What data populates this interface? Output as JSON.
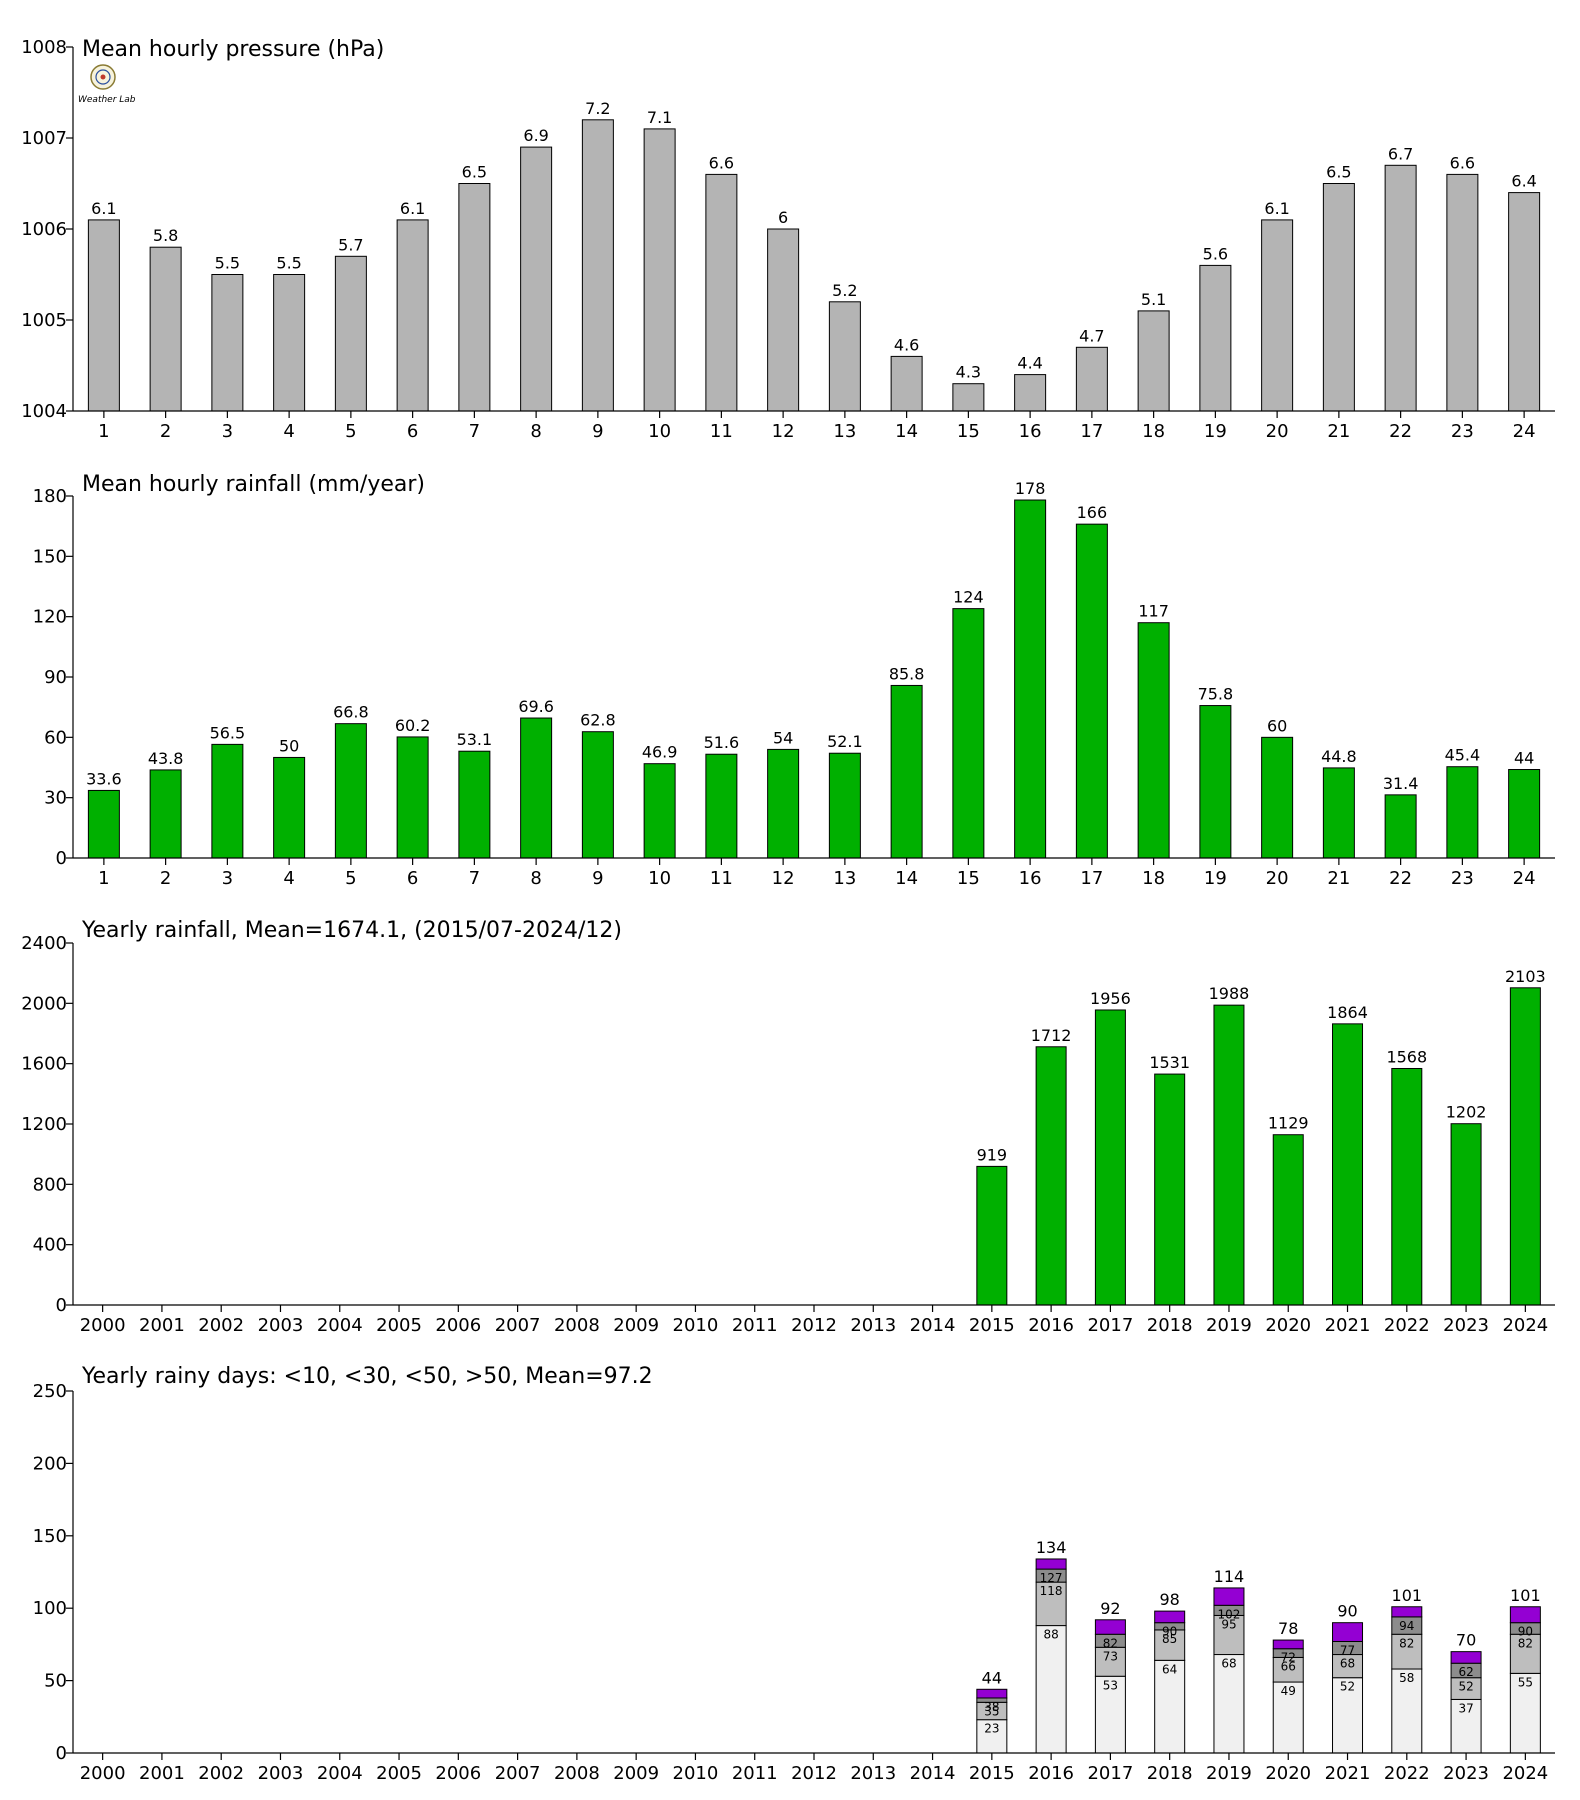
{
  "colors": {
    "pressure_bar": "#b4b4b4",
    "rain_bar": "#00b000",
    "seg_lt10": "#f0f0f0",
    "seg_lt30": "#bebebe",
    "seg_lt50": "#8c8c8c",
    "seg_gt50": "#9400d3"
  },
  "logo": {
    "icon": "weather-lab-logo",
    "text": "Weather Lab"
  },
  "chart_data": [
    {
      "type": "bar",
      "title": "Mean hourly pressure (hPa)",
      "categories": [
        "1",
        "2",
        "3",
        "4",
        "5",
        "6",
        "7",
        "8",
        "9",
        "10",
        "11",
        "12",
        "13",
        "14",
        "15",
        "16",
        "17",
        "18",
        "19",
        "20",
        "21",
        "22",
        "23",
        "24"
      ],
      "values": [
        1006.1,
        1005.8,
        1005.5,
        1005.5,
        1005.7,
        1006.1,
        1006.5,
        1006.9,
        1007.2,
        1007.1,
        1006.6,
        1006.0,
        1005.2,
        1004.6,
        1004.3,
        1004.4,
        1004.7,
        1005.1,
        1005.6,
        1006.1,
        1006.5,
        1006.7,
        1006.6,
        1006.4
      ],
      "value_labels": [
        "6.1",
        "5.8",
        "5.5",
        "5.5",
        "5.7",
        "6.1",
        "6.5",
        "6.9",
        "7.2",
        "7.1",
        "6.6",
        "6",
        "5.2",
        "4.6",
        "4.3",
        "4.4",
        "4.7",
        "5.1",
        "5.6",
        "6.1",
        "6.5",
        "6.7",
        "6.6",
        "6.4"
      ],
      "ylim": [
        1004,
        1008
      ],
      "yticks": [
        1004,
        1005,
        1006,
        1007,
        1008
      ],
      "ytick_labels": [
        "1004",
        "1005",
        "1006",
        "1007",
        "1008"
      ],
      "grid": false
    },
    {
      "type": "bar",
      "title": "Mean hourly rainfall (mm/year)",
      "categories": [
        "1",
        "2",
        "3",
        "4",
        "5",
        "6",
        "7",
        "8",
        "9",
        "10",
        "11",
        "12",
        "13",
        "14",
        "15",
        "16",
        "17",
        "18",
        "19",
        "20",
        "21",
        "22",
        "23",
        "24"
      ],
      "values": [
        33.6,
        43.8,
        56.5,
        50,
        66.8,
        60.2,
        53.1,
        69.6,
        62.8,
        46.9,
        51.6,
        54,
        52.1,
        85.8,
        124,
        178,
        166,
        117,
        75.8,
        60,
        44.8,
        31.4,
        45.4,
        44
      ],
      "value_labels": [
        "33.6",
        "43.8",
        "56.5",
        "50",
        "66.8",
        "60.2",
        "53.1",
        "69.6",
        "62.8",
        "46.9",
        "51.6",
        "54",
        "52.1",
        "85.8",
        "124",
        "178",
        "166",
        "117",
        "75.8",
        "60",
        "44.8",
        "31.4",
        "45.4",
        "44"
      ],
      "ylim": [
        0,
        180
      ],
      "yticks": [
        0,
        30,
        60,
        90,
        120,
        150,
        180
      ],
      "ytick_labels": [
        "0",
        "30",
        "60",
        "90",
        "120",
        "150",
        "180"
      ],
      "grid": false
    },
    {
      "type": "bar",
      "title": "Yearly rainfall, Mean=1674.1, (2015/07-2024/12)",
      "categories": [
        "2000",
        "2001",
        "2002",
        "2003",
        "2004",
        "2005",
        "2006",
        "2007",
        "2008",
        "2009",
        "2010",
        "2011",
        "2012",
        "2013",
        "2014",
        "2015",
        "2016",
        "2017",
        "2018",
        "2019",
        "2020",
        "2021",
        "2022",
        "2023",
        "2024"
      ],
      "values": [
        null,
        null,
        null,
        null,
        null,
        null,
        null,
        null,
        null,
        null,
        null,
        null,
        null,
        null,
        null,
        919,
        1712,
        1956,
        1531,
        1988,
        1129,
        1864,
        1568,
        1202,
        2103
      ],
      "value_labels": [
        "",
        "",
        "",
        "",
        "",
        "",
        "",
        "",
        "",
        "",
        "",
        "",
        "",
        "",
        "",
        "919",
        "1712",
        "1956",
        "1531",
        "1988",
        "1129",
        "1864",
        "1568",
        "1202",
        "2103"
      ],
      "ylim": [
        0,
        2400
      ],
      "yticks": [
        0,
        400,
        800,
        1200,
        1600,
        2000,
        2400
      ],
      "ytick_labels": [
        "0",
        "400",
        "800",
        "1200",
        "1600",
        "2000",
        "2400"
      ],
      "grid": false
    },
    {
      "type": "bar",
      "stacked": true,
      "title": "Yearly rainy days: <10, <30, <50, >50, Mean=97.2",
      "categories": [
        "2000",
        "2001",
        "2002",
        "2003",
        "2004",
        "2005",
        "2006",
        "2007",
        "2008",
        "2009",
        "2010",
        "2011",
        "2012",
        "2013",
        "2014",
        "2015",
        "2016",
        "2017",
        "2018",
        "2019",
        "2020",
        "2021",
        "2022",
        "2023",
        "2024"
      ],
      "cumulative": {
        "lt10": [
          null,
          null,
          null,
          null,
          null,
          null,
          null,
          null,
          null,
          null,
          null,
          null,
          null,
          null,
          null,
          23,
          88,
          53,
          64,
          68,
          49,
          52,
          58,
          37,
          55
        ],
        "lt30": [
          null,
          null,
          null,
          null,
          null,
          null,
          null,
          null,
          null,
          null,
          null,
          null,
          null,
          null,
          null,
          35,
          118,
          73,
          85,
          95,
          66,
          68,
          82,
          52,
          82
        ],
        "lt50": [
          null,
          null,
          null,
          null,
          null,
          null,
          null,
          null,
          null,
          null,
          null,
          null,
          null,
          null,
          null,
          38,
          127,
          82,
          90,
          102,
          72,
          77,
          94,
          62,
          90
        ],
        "total": [
          null,
          null,
          null,
          null,
          null,
          null,
          null,
          null,
          null,
          null,
          null,
          null,
          null,
          null,
          null,
          44,
          134,
          92,
          98,
          114,
          78,
          90,
          101,
          70,
          101
        ]
      },
      "cumulative_labels": {
        "lt10": [
          "",
          "",
          "",
          "",
          "",
          "",
          "",
          "",
          "",
          "",
          "",
          "",
          "",
          "",
          "",
          "23",
          "88",
          "53",
          "64",
          "68",
          "49",
          "52",
          "58",
          "37",
          "55"
        ],
        "lt30": [
          "",
          "",
          "",
          "",
          "",
          "",
          "",
          "",
          "",
          "",
          "",
          "",
          "",
          "",
          "",
          "35",
          "118",
          "73",
          "85",
          "95",
          "66",
          "68",
          "82",
          "52",
          "82"
        ],
        "lt50": [
          "",
          "",
          "",
          "",
          "",
          "",
          "",
          "",
          "",
          "",
          "",
          "",
          "",
          "",
          "",
          "38",
          "127",
          "82",
          "90",
          "102",
          "72",
          "77",
          "94",
          "62",
          "90"
        ],
        "total": [
          "",
          "",
          "",
          "",
          "",
          "",
          "",
          "",
          "",
          "",
          "",
          "",
          "",
          "",
          "",
          "44",
          "134",
          "92",
          "98",
          "114",
          "78",
          "90",
          "101",
          "70",
          "101"
        ]
      },
      "ylim": [
        0,
        250
      ],
      "yticks": [
        0,
        50,
        100,
        150,
        200,
        250
      ],
      "ytick_labels": [
        "0",
        "50",
        "100",
        "150",
        "200",
        "250"
      ],
      "grid": false
    }
  ]
}
